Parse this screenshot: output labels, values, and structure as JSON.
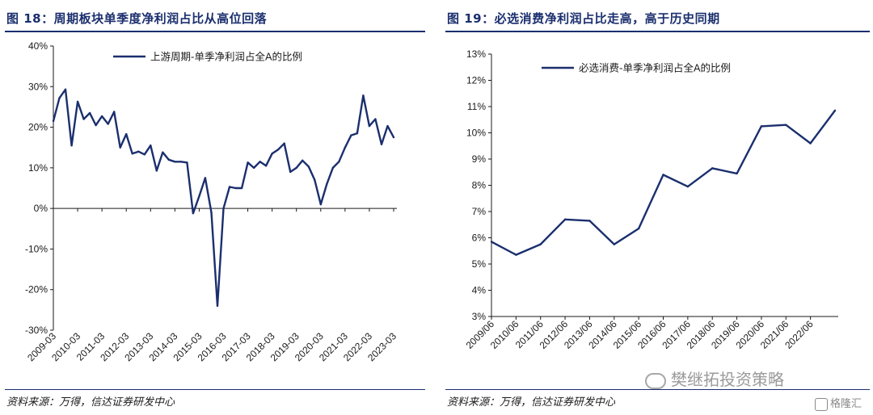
{
  "left_panel": {
    "title": "图 18：周期板块单季度净利润占比从高位回落",
    "source": "资料来源：万得，信达证券研发中心"
  },
  "right_panel": {
    "title": "图 19：必选消费净利润占比走高，高于历史同期",
    "source": "资料来源：万得，信达证券研发中心"
  },
  "watermark": {
    "text": "樊继拓投资策略",
    "icon": "wechat-icon"
  },
  "brand": {
    "text": "格隆汇",
    "icon": "gelonghui-logo-icon"
  },
  "colors": {
    "line": "#1b2f6e",
    "title": "#1b2f6e",
    "axis": "#1a1a1a"
  },
  "chart_data": [
    {
      "type": "line",
      "title": "图 18：周期板块单季度净利润占比从高位回落",
      "legend_position": "top-center",
      "grid": false,
      "ylim": [
        -30,
        40
      ],
      "y_ticks": [
        "40%",
        "30%",
        "20%",
        "10%",
        "0%",
        "-10%",
        "-20%",
        "-30%"
      ],
      "y_tick_values": [
        40,
        30,
        20,
        10,
        0,
        -10,
        -20,
        -30
      ],
      "x_tick_labels": [
        "2009-03",
        "2010-03",
        "2011-03",
        "2012-03",
        "2013-03",
        "2014-03",
        "2015-03",
        "2016-03",
        "2017-03",
        "2018-03",
        "2019-03",
        "2020-03",
        "2021-03",
        "2022-03",
        "2023-03"
      ],
      "x_tick_index": [
        0,
        4,
        8,
        12,
        16,
        20,
        24,
        28,
        32,
        36,
        40,
        44,
        48,
        52,
        56
      ],
      "series": [
        {
          "name": "上游周期-单季净利润占全A的比例",
          "values": [
            21.5,
            27.2,
            29.3,
            15.5,
            26.3,
            22.0,
            23.5,
            20.5,
            22.7,
            20.8,
            23.8,
            15.0,
            18.3,
            13.5,
            14.0,
            13.3,
            15.5,
            9.3,
            13.8,
            12.0,
            11.5,
            11.5,
            11.3,
            -1.2,
            3.0,
            7.5,
            -1.0,
            -24.0,
            0.0,
            5.3,
            5.0,
            5.0,
            11.3,
            10.0,
            11.5,
            10.5,
            13.5,
            14.5,
            16.0,
            9.0,
            10.0,
            11.8,
            10.3,
            7.0,
            1.0,
            6.0,
            10.0,
            11.5,
            15.0,
            18.0,
            18.5,
            27.8,
            20.3,
            22.0,
            15.8,
            20.3,
            17.5
          ]
        }
      ]
    },
    {
      "type": "line",
      "title": "图 19：必选消费净利润占比走高，高于历史同期",
      "legend_position": "top-center",
      "grid": false,
      "ylim": [
        3,
        13
      ],
      "y_ticks": [
        "13%",
        "12%",
        "11%",
        "10%",
        "9%",
        "8%",
        "7%",
        "6%",
        "5%",
        "4%",
        "3%"
      ],
      "y_tick_values": [
        13,
        12,
        11,
        10,
        9,
        8,
        7,
        6,
        5,
        4,
        3
      ],
      "x_tick_labels": [
        "2009/06",
        "2010/06",
        "2011/06",
        "2012/06",
        "2013/06",
        "2014/06",
        "2015/06",
        "2016/06",
        "2017/06",
        "2018/06",
        "2019/06",
        "2020/06",
        "2021/06",
        "2022/06"
      ],
      "series": [
        {
          "name": "必选消费-单季净利润占全A的比例",
          "values": [
            5.85,
            5.35,
            5.75,
            6.7,
            6.65,
            5.75,
            6.35,
            8.4,
            7.95,
            8.65,
            8.45,
            10.25,
            10.3,
            9.6,
            10.85
          ]
        }
      ]
    }
  ]
}
